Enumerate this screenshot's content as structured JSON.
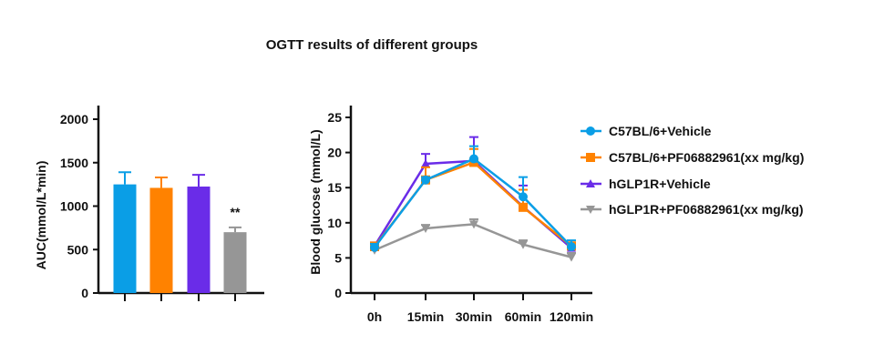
{
  "title": "OGTT results of different groups",
  "chart_data": [
    {
      "type": "bar",
      "ylabel": "AUC(mmol/L*min)",
      "ylim": [
        0,
        2000
      ],
      "yticks": [
        0,
        500,
        1000,
        1500,
        2000
      ],
      "categories": [
        "C57BL/6+Vehicle",
        "C57BL/6+PF06882961(xx mg/kg)",
        "hGLP1R+Vehicle",
        "hGLP1R+PF06882961(xx mg/kg)"
      ],
      "values": [
        1250,
        1210,
        1225,
        700
      ],
      "errors": [
        140,
        120,
        135,
        55
      ],
      "colors": [
        "#0a9ee6",
        "#ff8200",
        "#6a2ce8",
        "#969696"
      ],
      "annotations": [
        "",
        "",
        "",
        "**"
      ]
    },
    {
      "type": "line",
      "ylabel": "Blood glucose (mmol/L)",
      "ylim": [
        0,
        25
      ],
      "yticks": [
        0,
        5,
        10,
        15,
        20,
        25
      ],
      "categories": [
        "0h",
        "15min",
        "30min",
        "60min",
        "120min"
      ],
      "legend": "right",
      "series": [
        {
          "name": "C57BL/6+Vehicle",
          "marker": "circle",
          "color": "#0a9ee6",
          "values": [
            6.5,
            16.1,
            19.1,
            13.7,
            6.6
          ],
          "errors": [
            0.5,
            0.4,
            1.8,
            2.8,
            0.9
          ]
        },
        {
          "name": "C57BL/6+PF06882961(xx mg/kg)",
          "marker": "square",
          "color": "#ff8200",
          "values": [
            6.6,
            16.1,
            18.6,
            12.2,
            6.7
          ],
          "errors": [
            0.6,
            1.8,
            1.9,
            2.5,
            0.5
          ]
        },
        {
          "name": "hGLP1R+Vehicle",
          "marker": "triangle-up",
          "color": "#6a2ce8",
          "values": [
            6.7,
            18.4,
            18.8,
            12.3,
            6.4
          ],
          "errors": [
            0.5,
            1.4,
            3.4,
            3.0,
            0.6
          ]
        },
        {
          "name": "hGLP1R+PF06882961(xx mg/kg)",
          "marker": "triangle-down",
          "color": "#969696",
          "values": [
            6.1,
            9.2,
            9.8,
            6.9,
            5.1
          ],
          "errors": [
            0.4,
            0.5,
            0.7,
            0.6,
            0.6
          ]
        }
      ]
    }
  ]
}
